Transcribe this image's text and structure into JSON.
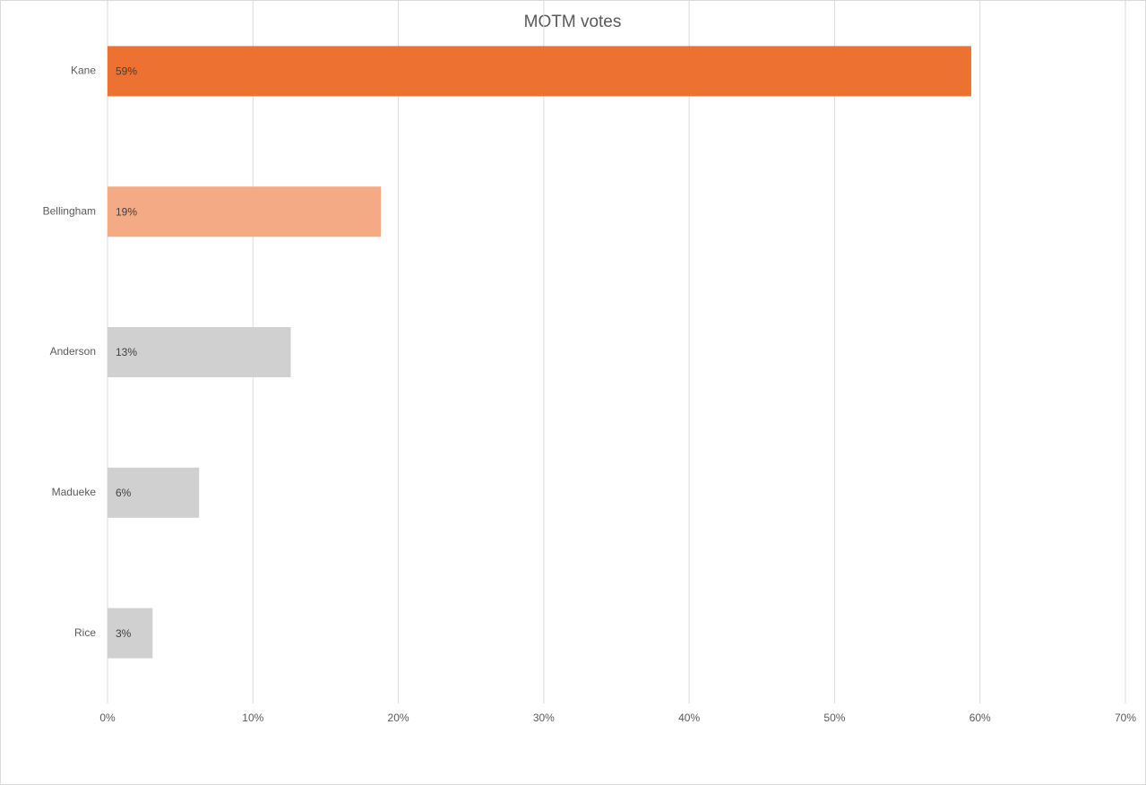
{
  "chart_data": {
    "type": "hbar",
    "title": "MOTM votes",
    "categories": [
      "Kane",
      "Bellingham",
      "Anderson",
      "Madueke",
      "Rice"
    ],
    "values": [
      59.4,
      18.8,
      12.6,
      6.3,
      3.1
    ],
    "value_labels": [
      "59%",
      "19%",
      "13%",
      "6%",
      "3%"
    ],
    "colors": [
      "#ED7131",
      "#F4AB85",
      "#D0D0D0",
      "#D0D0D0",
      "#D0D0D0"
    ],
    "xlim": [
      0,
      70
    ],
    "xticks": [
      {
        "value": 0,
        "label": "0%"
      },
      {
        "value": 10,
        "label": "10%"
      },
      {
        "value": 20,
        "label": "20%"
      },
      {
        "value": 30,
        "label": "30%"
      },
      {
        "value": 40,
        "label": "40%"
      },
      {
        "value": 50,
        "label": "50%"
      },
      {
        "value": 60,
        "label": "60%"
      },
      {
        "value": 70,
        "label": "70%"
      }
    ],
    "grid": true
  }
}
